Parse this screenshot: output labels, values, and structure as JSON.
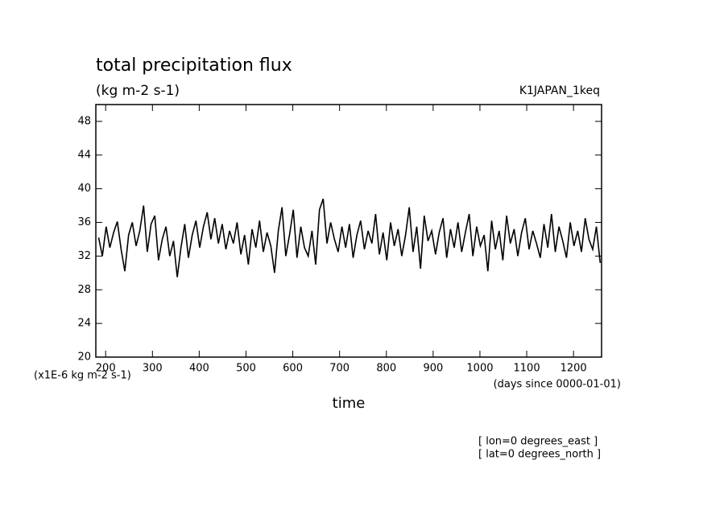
{
  "chart_data": {
    "type": "line",
    "title": "total precipitation flux",
    "subtitle": "(kg m-2 s-1)",
    "dataset": "K1JAPAN_1keq",
    "y_units": "(x1E-6 kg m-2 s-1)",
    "x_units": "(days since 0000-01-01)",
    "x_label": "time",
    "notes": [
      "[ lon=0 degrees_east ]",
      "[ lat=0 degrees_north ]"
    ],
    "xlim": [
      179,
      1260
    ],
    "ylim": [
      20,
      50
    ],
    "xticks": [
      200,
      300,
      400,
      500,
      600,
      700,
      800,
      900,
      1000,
      1100,
      1200
    ],
    "yticks": [
      20,
      24,
      28,
      32,
      36,
      40,
      44,
      48
    ],
    "series": [
      {
        "name": null,
        "color": "#000000",
        "x": [
          185,
          193,
          201,
          209,
          217,
          225,
          233,
          241,
          249,
          257,
          265,
          273,
          281,
          289,
          297,
          305,
          313,
          321,
          329,
          337,
          345,
          353,
          361,
          369,
          377,
          385,
          393,
          401,
          409,
          417,
          425,
          433,
          441,
          449,
          457,
          465,
          473,
          481,
          489,
          497,
          505,
          513,
          521,
          529,
          537,
          545,
          553,
          561,
          569,
          577,
          585,
          593,
          601,
          609,
          617,
          625,
          633,
          641,
          649,
          657,
          665,
          673,
          681,
          689,
          697,
          705,
          713,
          721,
          729,
          737,
          745,
          753,
          761,
          769,
          777,
          785,
          793,
          801,
          809,
          817,
          825,
          833,
          841,
          849,
          857,
          865,
          873,
          881,
          889,
          897,
          905,
          913,
          921,
          929,
          937,
          945,
          953,
          961,
          969,
          977,
          985,
          993,
          1001,
          1009,
          1017,
          1025,
          1033,
          1041,
          1049,
          1057,
          1065,
          1073,
          1081,
          1089,
          1097,
          1105,
          1113,
          1121,
          1129,
          1137,
          1145,
          1153,
          1161,
          1169,
          1177,
          1185,
          1193,
          1201,
          1209,
          1217,
          1225,
          1233,
          1241,
          1249,
          1257
        ],
        "values": [
          34.2,
          32.0,
          35.5,
          33.0,
          34.8,
          36.1,
          32.8,
          30.2,
          34.5,
          36.0,
          33.2,
          35.0,
          38.0,
          32.5,
          35.8,
          36.8,
          31.5,
          34.0,
          35.5,
          32.0,
          33.8,
          29.5,
          33.0,
          35.8,
          31.8,
          34.5,
          36.2,
          33.0,
          35.5,
          37.2,
          34.0,
          36.5,
          33.5,
          35.8,
          32.8,
          35.0,
          33.5,
          36.0,
          32.2,
          34.5,
          31.0,
          35.2,
          33.0,
          36.2,
          32.5,
          34.8,
          33.2,
          30.0,
          35.0,
          37.8,
          32.0,
          34.5,
          37.5,
          31.8,
          35.5,
          33.0,
          32.0,
          35.0,
          31.0,
          37.5,
          38.8,
          33.5,
          36.0,
          34.0,
          32.5,
          35.5,
          33.0,
          35.8,
          31.8,
          34.5,
          36.2,
          32.8,
          35.0,
          33.5,
          37.0,
          32.2,
          34.8,
          31.5,
          36.0,
          33.2,
          35.2,
          32.0,
          34.5,
          37.8,
          32.5,
          35.5,
          30.5,
          36.8,
          33.8,
          35.0,
          32.2,
          34.8,
          36.5,
          31.8,
          35.2,
          33.0,
          36.0,
          32.5,
          34.8,
          37.0,
          32.0,
          35.5,
          33.2,
          34.5,
          30.2,
          36.2,
          32.8,
          35.0,
          31.5,
          36.8,
          33.5,
          35.2,
          32.0,
          34.8,
          36.5,
          32.8,
          35.0,
          33.5,
          31.8,
          35.8,
          33.0,
          37.0,
          32.5,
          35.5,
          33.8,
          31.8,
          36.0,
          33.2,
          35.0,
          32.5,
          36.5,
          34.0,
          32.8,
          35.5,
          31.2
        ]
      }
    ]
  }
}
